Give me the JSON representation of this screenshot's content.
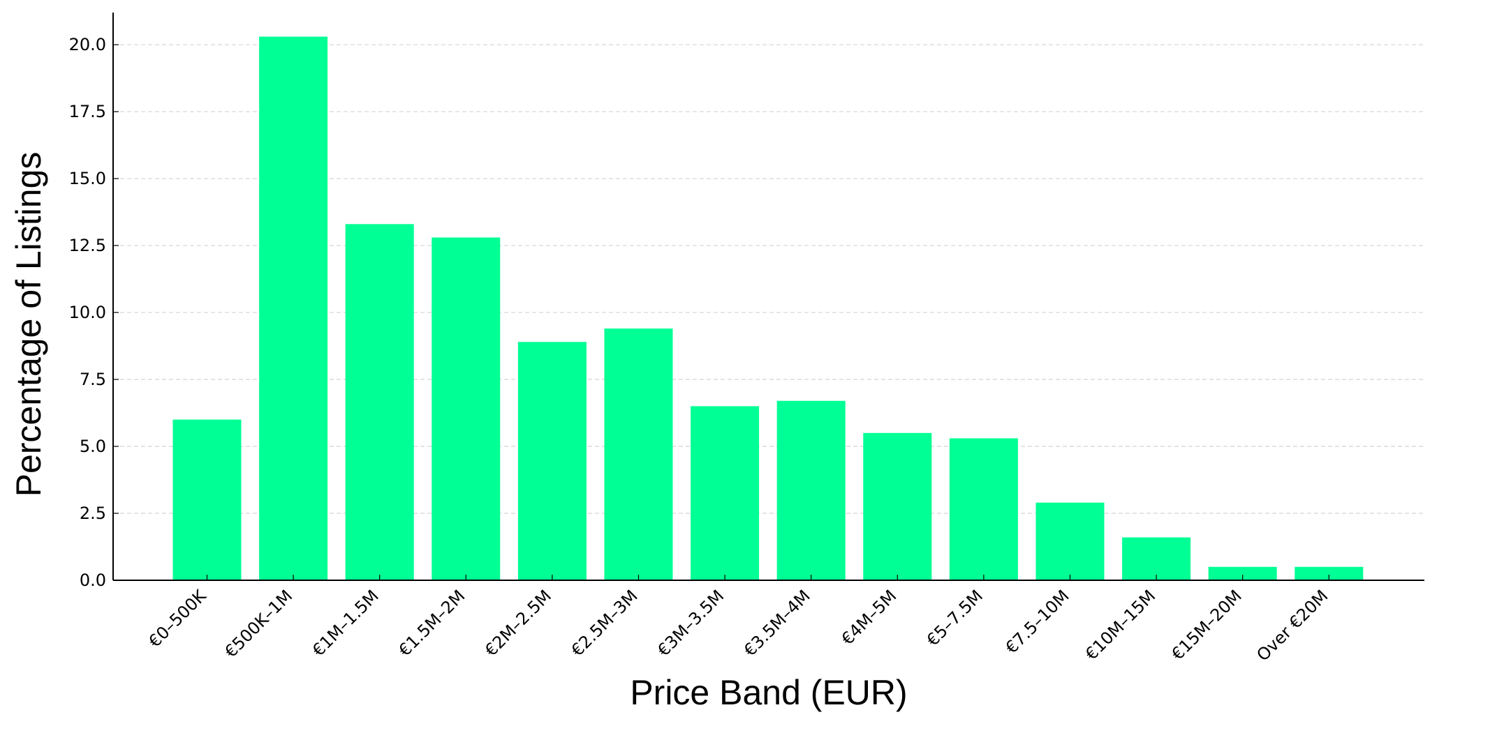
{
  "chart_data": {
    "type": "bar",
    "title": "",
    "xlabel": "Price Band (EUR)",
    "ylabel": "Percentage of Listings",
    "categories": [
      "€0–500K",
      "€500K–1M",
      "€1M–1.5M",
      "€1.5M–2M",
      "€2M–2.5M",
      "€2.5M–3M",
      "€3M–3.5M",
      "€3.5M–4M",
      "€4M–5M",
      "€5–7.5M",
      "€7.5–10M",
      "€10M–15M",
      "€15M–20M",
      "Over €20M"
    ],
    "values": [
      6.0,
      20.3,
      13.3,
      12.8,
      8.9,
      9.4,
      6.5,
      6.7,
      5.5,
      5.3,
      2.9,
      1.6,
      0.5,
      0.5
    ],
    "ylim": [
      0,
      21.2
    ],
    "yticks": [
      "0.0",
      "2.5",
      "5.0",
      "7.5",
      "10.0",
      "12.5",
      "15.0",
      "17.5",
      "20.0"
    ],
    "grid": "horizontal dashed",
    "colors": {
      "bar": "#00ff94",
      "grid": "#d3d3d3",
      "axis": "#000000"
    }
  }
}
